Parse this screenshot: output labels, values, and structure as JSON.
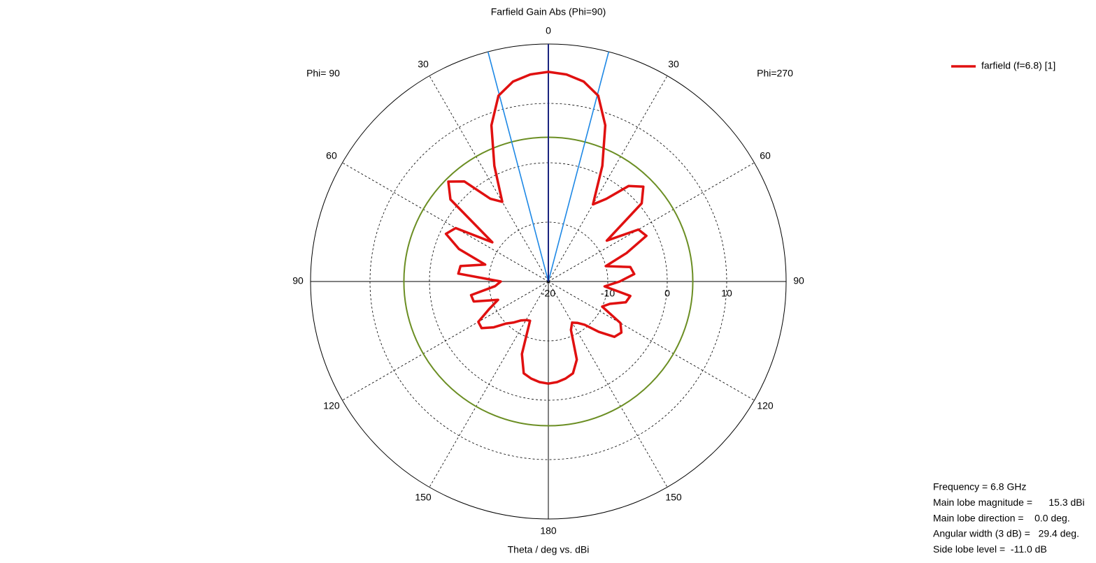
{
  "chart_data": {
    "type": "polar",
    "title": "Farfield Gain Abs (Phi=90)",
    "axis_label": "Theta / deg vs. dBi",
    "left_label": "Phi= 90",
    "right_label": "Phi=270",
    "rlim": [
      -20,
      20
    ],
    "rticks": [
      -20,
      -10,
      0,
      10
    ],
    "theta_ticks": [
      0,
      30,
      60,
      90,
      120,
      150,
      180
    ],
    "main_lobe_direction": 0,
    "angular_width_lines": [
      -14.7,
      14.7
    ],
    "side_lobe_circle": 4.3,
    "series": [
      {
        "name": "farfield (f=6.8) [1]",
        "color": "#e01010",
        "theta": [
          -180,
          -175,
          -170,
          -165,
          -160,
          -155,
          -150,
          -145,
          -140,
          -135,
          -130,
          -125,
          -120,
          -115,
          -110,
          -105,
          -100,
          -95,
          -90,
          -85,
          -80,
          -75,
          -70,
          -65,
          -60,
          -55,
          -50,
          -45,
          -40,
          -35,
          -30,
          -25,
          -20,
          -15,
          -10,
          -5,
          0,
          5,
          10,
          15,
          20,
          25,
          30,
          35,
          40,
          45,
          50,
          55,
          60,
          65,
          70,
          75,
          80,
          85,
          90,
          95,
          100,
          105,
          110,
          115,
          120,
          125,
          130,
          135,
          140,
          145,
          150,
          155,
          160,
          165,
          170,
          175,
          180
        ],
        "values": [
          -2.8,
          -3,
          -3.4,
          -4,
          -7,
          -12.7,
          -12.5,
          -12,
          -11,
          -10,
          -8,
          -6.3,
          -6.4,
          -9,
          -11,
          -7,
          -6.8,
          -11,
          -12,
          -4.8,
          -5,
          -9,
          -4,
          -1,
          -2,
          -8.5,
          1.5,
          3.8,
          2,
          -3,
          -4.5,
          1.5,
          8,
          12.4,
          14.2,
          15,
          15.3,
          15,
          14.2,
          12.4,
          8,
          1.5,
          -5,
          -3,
          1,
          2.6,
          0.5,
          -8,
          -2.5,
          -1.8,
          -6,
          -10,
          -6,
          -5.5,
          -8,
          -10.5,
          -6,
          -6.5,
          -9,
          -10,
          -6,
          -5,
          -5.5,
          -8,
          -10.5,
          -11.5,
          -12,
          -11,
          -6,
          -4,
          -3.4,
          -3,
          -2.8
        ]
      }
    ],
    "annotations": [
      "Frequency = 6.8 GHz",
      "Main lobe magnitude =      15.3 dBi",
      "Main lobe direction =    0.0 deg.",
      "Angular width (3 dB) =   29.4 deg.",
      "Side lobe level =  -11.0 dB"
    ]
  }
}
